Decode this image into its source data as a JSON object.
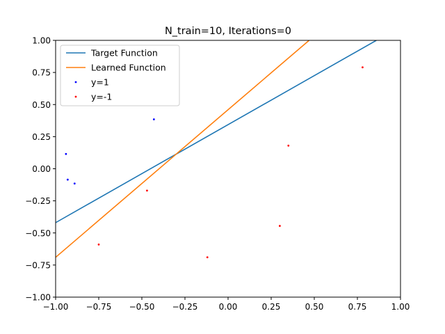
{
  "chart_data": {
    "type": "scatter",
    "title": "N_train=10, Iterations=0",
    "xlabel": "",
    "ylabel": "",
    "xlim": [
      -1.0,
      1.0
    ],
    "ylim": [
      -1.0,
      1.0
    ],
    "xticks": [
      "−1.00",
      "−0.75",
      "−0.50",
      "−0.25",
      "0.00",
      "0.25",
      "0.50",
      "0.75",
      "1.00"
    ],
    "yticks": [
      "−1.00",
      "−0.75",
      "−0.50",
      "−0.25",
      "0.00",
      "0.25",
      "0.50",
      "0.75",
      "1.00"
    ],
    "grid": false,
    "legend_position": "top-left",
    "lines": [
      {
        "name": "Target Function",
        "color": "#1f77b4",
        "x": [
          -1.0,
          0.86
        ],
        "y": [
          -0.42,
          1.0
        ]
      },
      {
        "name": "Learned Function",
        "color": "#ff7f0e",
        "x": [
          -1.0,
          0.47
        ],
        "y": [
          -0.69,
          1.0
        ]
      }
    ],
    "scatter": [
      {
        "name": "y=1",
        "color": "#0000ff",
        "points": [
          [
            -0.94,
            0.115
          ],
          [
            -0.93,
            -0.085
          ],
          [
            -0.89,
            -0.115
          ],
          [
            -0.43,
            0.385
          ]
        ]
      },
      {
        "name": "y=-1",
        "color": "#ff0000",
        "points": [
          [
            -0.75,
            -0.59
          ],
          [
            -0.47,
            -0.17
          ],
          [
            -0.12,
            -0.69
          ],
          [
            0.3,
            -0.445
          ],
          [
            0.35,
            0.18
          ],
          [
            0.78,
            0.79
          ]
        ]
      }
    ]
  }
}
